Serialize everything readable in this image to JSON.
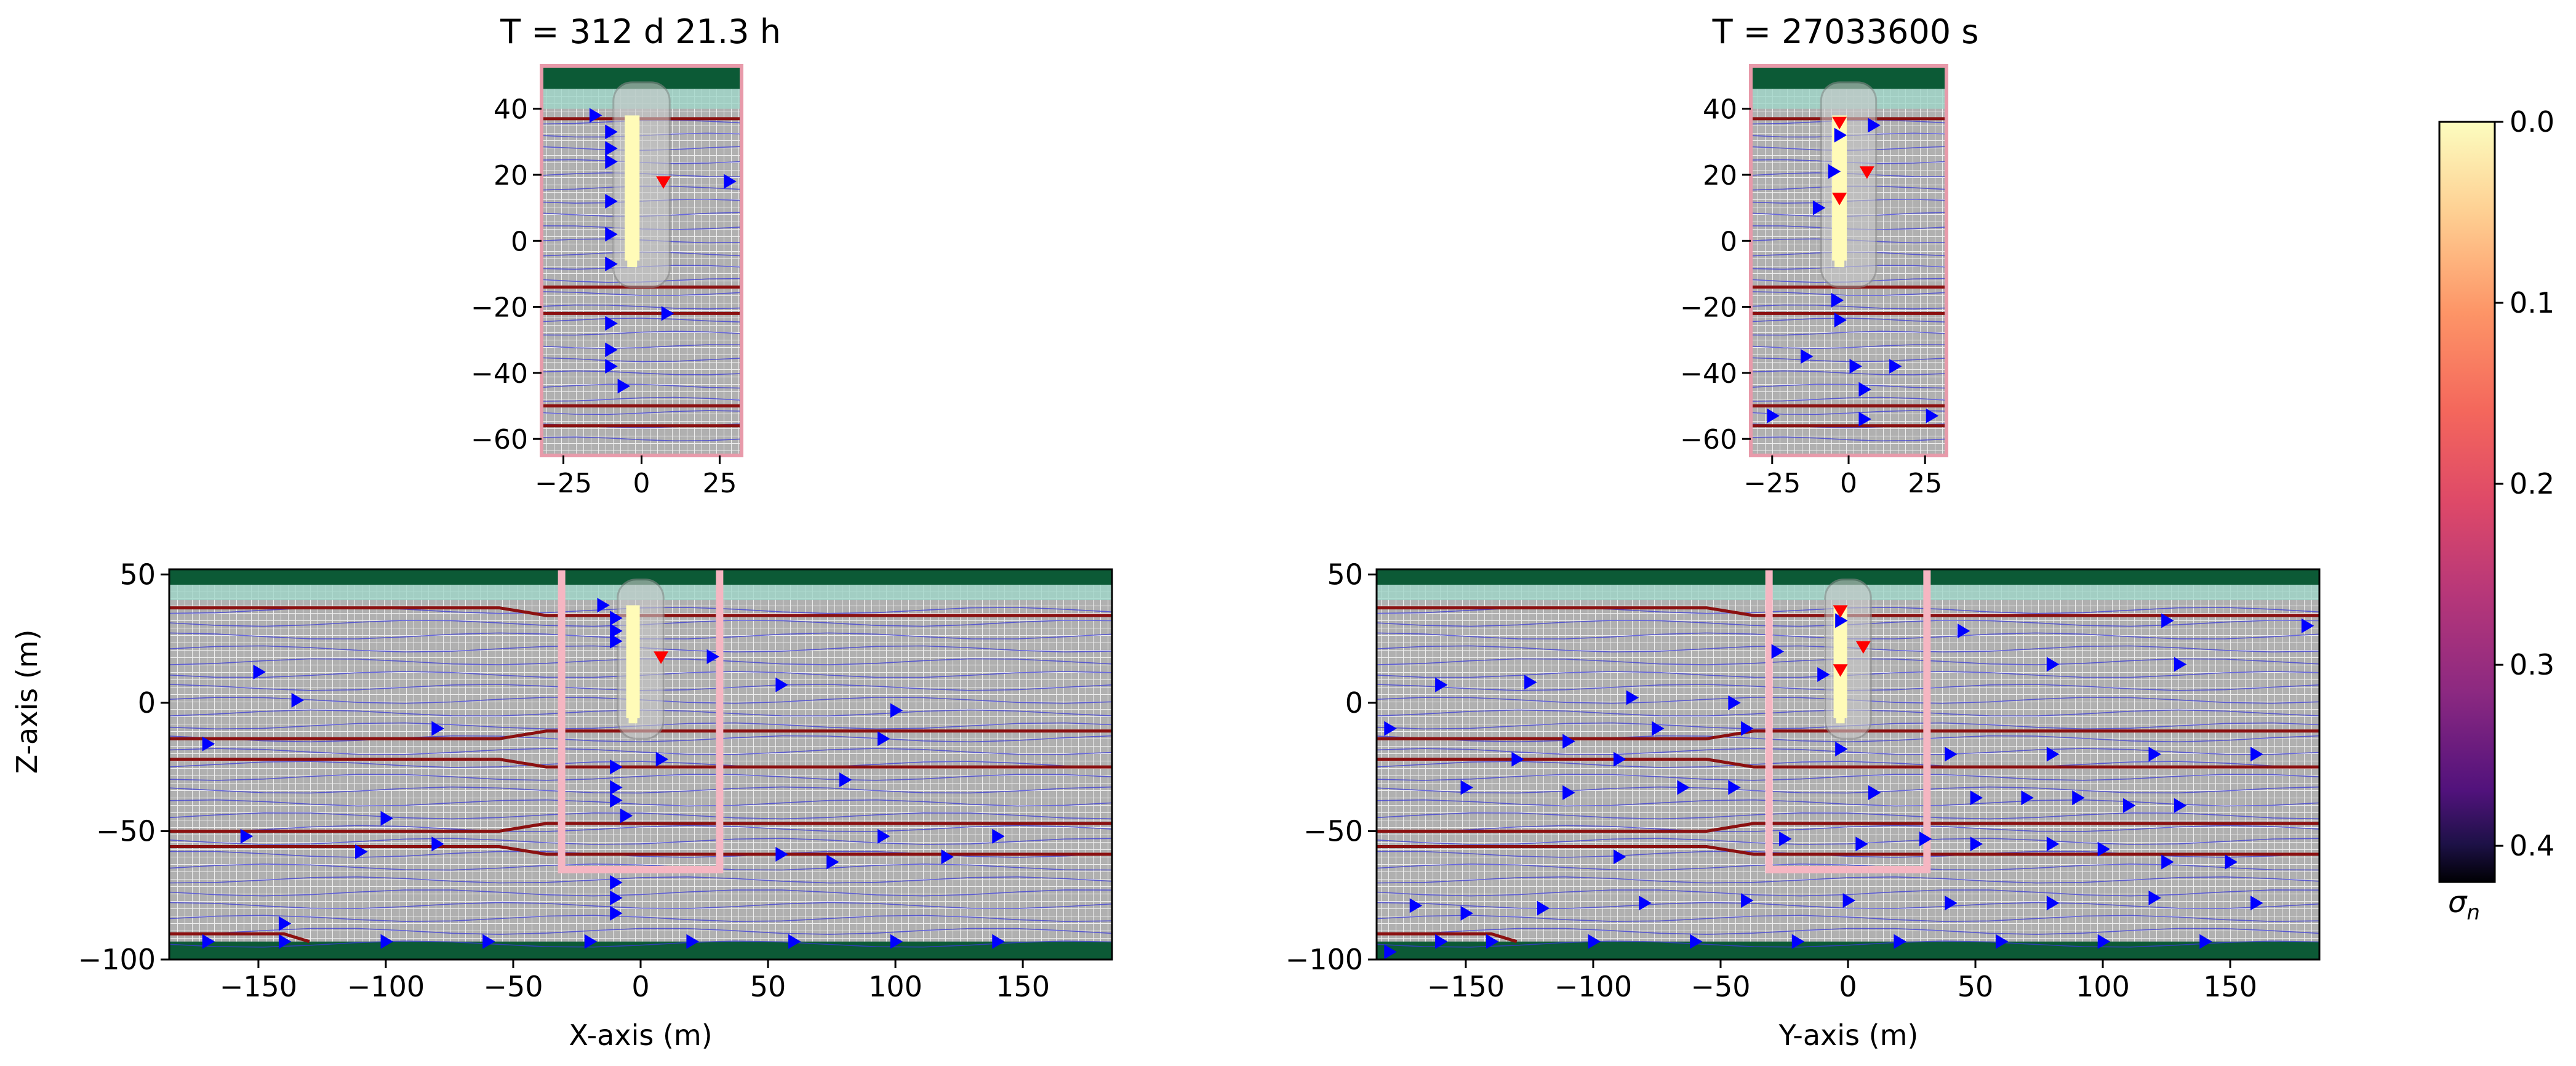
{
  "titles": {
    "left": "T = 312 d 21.3 h",
    "right": "T = 27033600 s"
  },
  "colorbar": {
    "label": "σ",
    "label_sub": "n",
    "ticks": [
      "0.0",
      "0.1",
      "0.2",
      "0.3",
      "0.4"
    ],
    "range": [
      0.0,
      0.42
    ],
    "direction": "inverted (0.0 at top)"
  },
  "colors": {
    "grid_background": "#b0b0b0",
    "grid_lines": "#f2f2f2",
    "streamline": "#3a3ad8",
    "arrow_blue": "#0000ff",
    "arrow_red": "#ff0000",
    "layer_boundary": "#8b1010",
    "top_layer": "#0c5a36",
    "bottom_layer": "#0c5a36",
    "shallow_water": "#9fd6c8",
    "window_outline": "#f5b6c2",
    "tunnel": "#fffbb8"
  },
  "chart_data": [
    {
      "id": "inset-left",
      "type": "heatmap",
      "title": "T = 312 d 21.3 h",
      "xlabel": "",
      "ylabel": "",
      "xlim": [
        -32,
        32
      ],
      "ylim": [
        -65,
        53
      ],
      "xticks": [
        "−25",
        "0",
        "25"
      ],
      "xtick_values": [
        -25,
        0,
        25
      ],
      "yticks": [
        "40",
        "20",
        "0",
        "−20",
        "−40",
        "−60"
      ],
      "ytick_values": [
        40,
        20,
        0,
        -20,
        -40,
        -60
      ],
      "layer_boundaries_z": [
        37,
        -14,
        -22,
        -50,
        -56
      ],
      "red_arrows": [
        {
          "x": 7,
          "z": 18
        }
      ],
      "blue_arrows": [
        {
          "x": -15,
          "z": 38
        },
        {
          "x": -10,
          "z": 33
        },
        {
          "x": -10,
          "z": 28
        },
        {
          "x": -10,
          "z": 24
        },
        {
          "x": -10,
          "z": 12
        },
        {
          "x": -10,
          "z": 2
        },
        {
          "x": -10,
          "z": -7
        },
        {
          "x": 28,
          "z": 18
        },
        {
          "x": 8,
          "z": -22
        },
        {
          "x": -10,
          "z": -25
        },
        {
          "x": -10,
          "z": -33
        },
        {
          "x": -10,
          "z": -38
        },
        {
          "x": -6,
          "z": -44
        }
      ]
    },
    {
      "id": "inset-right",
      "type": "heatmap",
      "title": "T = 27033600 s",
      "xlabel": "",
      "ylabel": "",
      "xlim": [
        -32,
        32
      ],
      "ylim": [
        -65,
        53
      ],
      "xticks": [
        "−25",
        "0",
        "25"
      ],
      "xtick_values": [
        -25,
        0,
        25
      ],
      "yticks": [
        "40",
        "20",
        "0",
        "−20",
        "−40",
        "−60"
      ],
      "ytick_values": [
        40,
        20,
        0,
        -20,
        -40,
        -60
      ],
      "layer_boundaries_z": [
        37,
        -14,
        -22,
        -50,
        -56
      ],
      "red_arrows": [
        {
          "x": -3,
          "z": 36
        },
        {
          "x": 6,
          "z": 21
        },
        {
          "x": -3,
          "z": 13
        }
      ],
      "blue_arrows": [
        {
          "x": -3,
          "z": 32
        },
        {
          "x": 8,
          "z": 35
        },
        {
          "x": -5,
          "z": 21
        },
        {
          "x": -10,
          "z": 10
        },
        {
          "x": -4,
          "z": -18
        },
        {
          "x": -3,
          "z": -24
        },
        {
          "x": -14,
          "z": -35
        },
        {
          "x": 2,
          "z": -38
        },
        {
          "x": 15,
          "z": -38
        },
        {
          "x": 5,
          "z": -45
        },
        {
          "x": -25,
          "z": -53
        },
        {
          "x": 5,
          "z": -54
        },
        {
          "x": 27,
          "z": -53
        }
      ]
    },
    {
      "id": "main-left",
      "type": "heatmap",
      "title": "",
      "xlabel": "X-axis (m)",
      "ylabel": "Z-axis (m)",
      "xlim": [
        -185,
        185
      ],
      "ylim": [
        -100,
        52
      ],
      "xticks": [
        "−150",
        "−100",
        "−50",
        "0",
        "50",
        "100",
        "150"
      ],
      "xtick_values": [
        -150,
        -100,
        -50,
        0,
        50,
        100,
        150
      ],
      "yticks": [
        "50",
        "0",
        "−50",
        "−100"
      ],
      "ytick_values": [
        50,
        0,
        -50,
        -100
      ],
      "window_x": [
        -31,
        31
      ],
      "window_z": [
        -65,
        52
      ],
      "red_arrows": [
        {
          "x": 8,
          "z": 18
        }
      ],
      "blue_arrows": [
        {
          "x": -15,
          "z": 38
        },
        {
          "x": -10,
          "z": 33
        },
        {
          "x": -10,
          "z": 28
        },
        {
          "x": -10,
          "z": 24
        },
        {
          "x": -150,
          "z": 12
        },
        {
          "x": -135,
          "z": 1
        },
        {
          "x": 28,
          "z": 18
        },
        {
          "x": 55,
          "z": 7
        },
        {
          "x": 100,
          "z": -3
        },
        {
          "x": -80,
          "z": -10
        },
        {
          "x": -170,
          "z": -16
        },
        {
          "x": 95,
          "z": -14
        },
        {
          "x": 8,
          "z": -22
        },
        {
          "x": 80,
          "z": -30
        },
        {
          "x": -10,
          "z": -25
        },
        {
          "x": -10,
          "z": -33
        },
        {
          "x": -10,
          "z": -38
        },
        {
          "x": -6,
          "z": -44
        },
        {
          "x": -100,
          "z": -45
        },
        {
          "x": -155,
          "z": -52
        },
        {
          "x": -80,
          "z": -55
        },
        {
          "x": -110,
          "z": -58
        },
        {
          "x": 55,
          "z": -59
        },
        {
          "x": 75,
          "z": -62
        },
        {
          "x": 95,
          "z": -52
        },
        {
          "x": 120,
          "z": -60
        },
        {
          "x": 140,
          "z": -52
        },
        {
          "x": -10,
          "z": -70
        },
        {
          "x": -10,
          "z": -76
        },
        {
          "x": -10,
          "z": -82
        },
        {
          "x": -140,
          "z": -86
        },
        {
          "x": -170,
          "z": -93
        },
        {
          "x": -140,
          "z": -93
        },
        {
          "x": -100,
          "z": -93
        },
        {
          "x": -60,
          "z": -93
        },
        {
          "x": -20,
          "z": -93
        },
        {
          "x": 20,
          "z": -93
        },
        {
          "x": 60,
          "z": -93
        },
        {
          "x": 100,
          "z": -93
        },
        {
          "x": 140,
          "z": -93
        }
      ]
    },
    {
      "id": "main-right",
      "type": "heatmap",
      "title": "",
      "xlabel": "Y-axis (m)",
      "ylabel": "",
      "xlim": [
        -185,
        185
      ],
      "ylim": [
        -100,
        52
      ],
      "xticks": [
        "−150",
        "−100",
        "−50",
        "0",
        "50",
        "100",
        "150"
      ],
      "xtick_values": [
        -150,
        -100,
        -50,
        0,
        50,
        100,
        150
      ],
      "yticks": [
        "50",
        "0",
        "−50",
        "−100"
      ],
      "ytick_values": [
        50,
        0,
        -50,
        -100
      ],
      "window_x": [
        -31,
        31
      ],
      "window_z": [
        -65,
        52
      ],
      "red_arrows": [
        {
          "x": -3,
          "z": 36
        },
        {
          "x": 6,
          "z": 22
        },
        {
          "x": -3,
          "z": 13
        }
      ],
      "blue_arrows": [
        {
          "x": -3,
          "z": 32
        },
        {
          "x": 45,
          "z": 28
        },
        {
          "x": 125,
          "z": 32
        },
        {
          "x": 180,
          "z": 30
        },
        {
          "x": -28,
          "z": 20
        },
        {
          "x": -10,
          "z": 11
        },
        {
          "x": -180,
          "z": -10
        },
        {
          "x": -160,
          "z": 7
        },
        {
          "x": -125,
          "z": 8
        },
        {
          "x": -85,
          "z": 2
        },
        {
          "x": -45,
          "z": 0
        },
        {
          "x": -75,
          "z": -10
        },
        {
          "x": -110,
          "z": -15
        },
        {
          "x": 80,
          "z": 15
        },
        {
          "x": 130,
          "z": 15
        },
        {
          "x": -40,
          "z": -10
        },
        {
          "x": -3,
          "z": -18
        },
        {
          "x": 40,
          "z": -20
        },
        {
          "x": 80,
          "z": -20
        },
        {
          "x": 120,
          "z": -20
        },
        {
          "x": 160,
          "z": -20
        },
        {
          "x": -130,
          "z": -22
        },
        {
          "x": -90,
          "z": -22
        },
        {
          "x": -150,
          "z": -33
        },
        {
          "x": -110,
          "z": -35
        },
        {
          "x": -65,
          "z": -33
        },
        {
          "x": -45,
          "z": -33
        },
        {
          "x": 10,
          "z": -35
        },
        {
          "x": 50,
          "z": -37
        },
        {
          "x": 70,
          "z": -37
        },
        {
          "x": 90,
          "z": -37
        },
        {
          "x": 110,
          "z": -40
        },
        {
          "x": 130,
          "z": -40
        },
        {
          "x": -25,
          "z": -53
        },
        {
          "x": 5,
          "z": -55
        },
        {
          "x": 30,
          "z": -53
        },
        {
          "x": 50,
          "z": -55
        },
        {
          "x": 80,
          "z": -55
        },
        {
          "x": 100,
          "z": -57
        },
        {
          "x": 125,
          "z": -62
        },
        {
          "x": 150,
          "z": -62
        },
        {
          "x": -90,
          "z": -60
        },
        {
          "x": -170,
          "z": -79
        },
        {
          "x": -150,
          "z": -82
        },
        {
          "x": -120,
          "z": -80
        },
        {
          "x": -80,
          "z": -78
        },
        {
          "x": -40,
          "z": -77
        },
        {
          "x": 0,
          "z": -77
        },
        {
          "x": 40,
          "z": -78
        },
        {
          "x": 80,
          "z": -78
        },
        {
          "x": 120,
          "z": -76
        },
        {
          "x": 160,
          "z": -78
        },
        {
          "x": -160,
          "z": -93
        },
        {
          "x": -140,
          "z": -93
        },
        {
          "x": -100,
          "z": -93
        },
        {
          "x": -60,
          "z": -93
        },
        {
          "x": -20,
          "z": -93
        },
        {
          "x": 20,
          "z": -93
        },
        {
          "x": 60,
          "z": -93
        },
        {
          "x": 100,
          "z": -93
        },
        {
          "x": 140,
          "z": -93
        },
        {
          "x": -180,
          "z": -97
        }
      ]
    }
  ]
}
